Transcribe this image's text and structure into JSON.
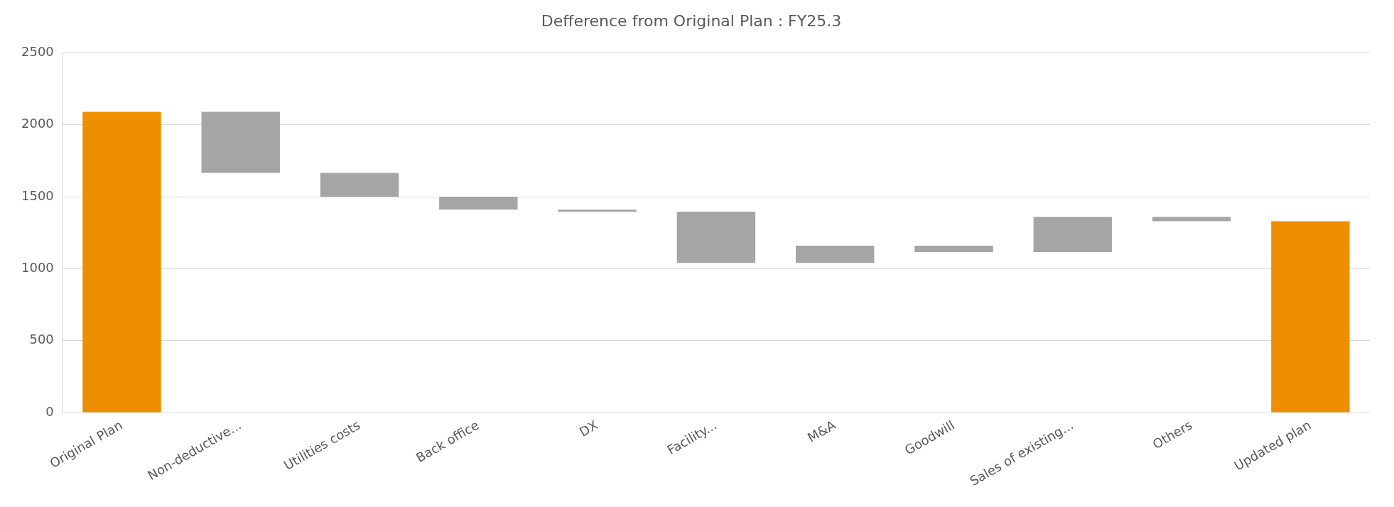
{
  "chart_data": {
    "type": "bar",
    "title": "Defference from Original Plan : FY25.3",
    "categories": [
      "Original Plan",
      "Non-deductive...",
      "Utilities costs",
      "Back office",
      "DX",
      "Facility...",
      "M&A",
      "Goodwill",
      "Sales of existing...",
      "Others",
      "Updated plan"
    ],
    "values": [
      2090,
      -425,
      -165,
      -90,
      -15,
      -355,
      120,
      -45,
      245,
      -30,
      1330
    ],
    "base": [
      0,
      2090,
      1665,
      1500,
      1410,
      1395,
      1040,
      1160,
      1115,
      1360,
      0
    ],
    "colors": [
      "#ee8f00",
      "#a5a5a5",
      "#a5a5a5",
      "#a5a5a5",
      "#a5a5a5",
      "#a5a5a5",
      "#a5a5a5",
      "#a5a5a5",
      "#a5a5a5",
      "#a5a5a5",
      "#ee8f00"
    ],
    "ylim": [
      0,
      2500
    ],
    "yticks": [
      0,
      500,
      1000,
      1500,
      2000,
      2500
    ],
    "grid": "y",
    "legend": false
  }
}
